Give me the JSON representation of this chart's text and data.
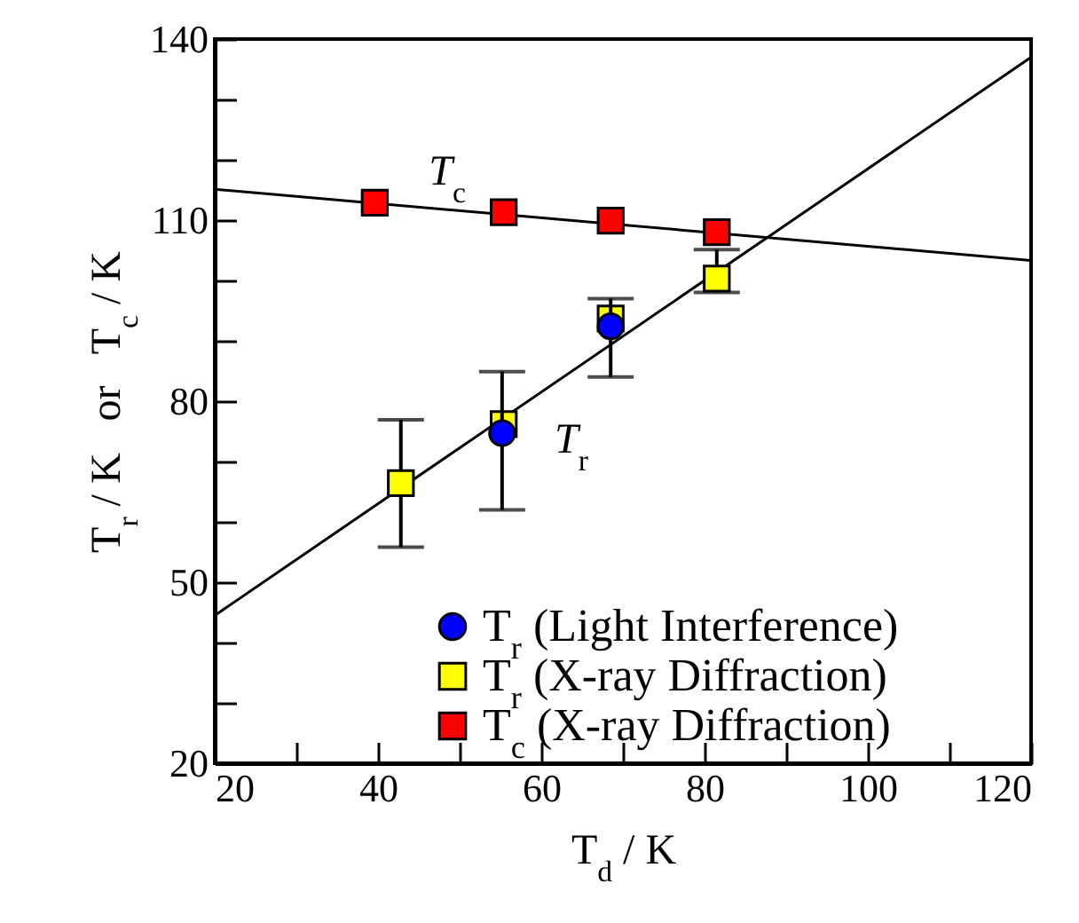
{
  "chart_data": {
    "type": "scatter",
    "xlabel": "T$_{d}$ / K",
    "ylabel": "T$_{r}$ / K   or   T$_{c}$ / K",
    "xlim": [
      20,
      120
    ],
    "ylim": [
      20,
      140
    ],
    "xticks": [
      20,
      {
        "value": 30,
        "label": null
      },
      40,
      {
        "value": 50,
        "label": null
      },
      60,
      {
        "value": 70,
        "label": null
      },
      80,
      {
        "value": 90,
        "label": null
      },
      100,
      {
        "value": 110,
        "label": null
      },
      120
    ],
    "yticks": [
      20,
      {
        "value": 30,
        "label": null
      },
      {
        "value": 40,
        "label": null
      },
      50,
      {
        "value": 60,
        "label": null
      },
      {
        "value": 70,
        "label": null
      },
      80,
      {
        "value": 90,
        "label": null
      },
      {
        "value": 100,
        "label": null
      },
      110,
      {
        "value": 120,
        "label": null
      },
      {
        "value": 130,
        "label": null
      },
      140
    ],
    "grid": false,
    "legend": "bottom right",
    "series": [
      {
        "type": "line",
        "color": "#000000",
        "x": [
          20,
          120
        ],
        "values": [
          44.5,
          137
        ],
        "marker": "none"
      },
      {
        "type": "line",
        "color": "#000000",
        "x": [
          20,
          120
        ],
        "values": [
          115.1,
          103.3
        ],
        "marker": "none"
      },
      {
        "name": "T$_{r}$ (Light Interference)",
        "type": "scatter",
        "marker": "circle",
        "color": "#0000ff",
        "x": [
          55.2,
          68.5
        ],
        "values": [
          74.7,
          92.4
        ],
        "errors": [
          [
            62,
            84.9
          ],
          [
            84,
            97
          ]
        ]
      },
      {
        "name": "T$_{r}$ (X-ray Diffraction)",
        "type": "scatter",
        "marker": "square",
        "color": "#ffff00",
        "x": [
          42.8,
          55.4,
          68.5,
          81.5
        ],
        "values": [
          66.4,
          76.2,
          93.7,
          100.3
        ],
        "errors": [
          [
            55.8,
            76.9
          ],
          null,
          null,
          [
            98,
            105.1
          ]
        ]
      },
      {
        "name": "T$_{c}$ (X-ray Diffraction)",
        "type": "scatter",
        "marker": "square",
        "color": "#ff0000",
        "x": [
          39.6,
          55.4,
          68.5,
          81.5
        ],
        "values": [
          112.9,
          111.3,
          109.9,
          108
        ]
      }
    ],
    "annotations": [
      "T$_{c}$",
      "T$_{r}$"
    ]
  }
}
